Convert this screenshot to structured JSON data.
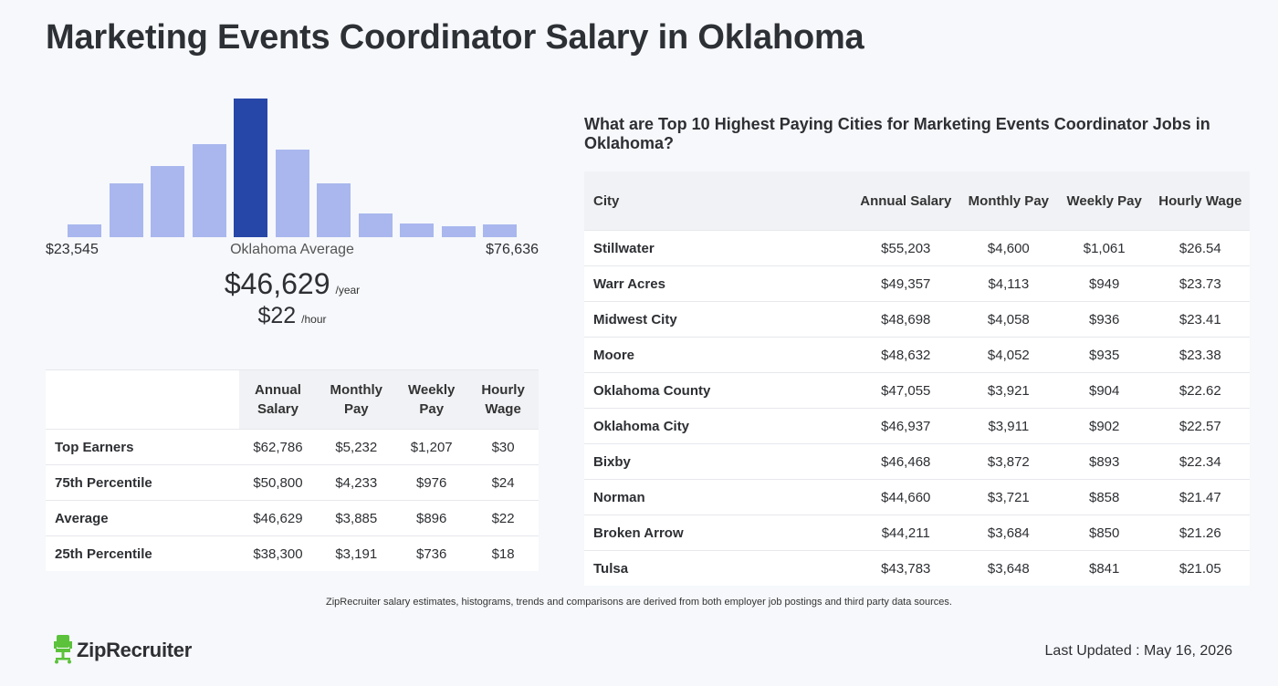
{
  "title": "Marketing Events Coordinator Salary in Oklahoma",
  "histogram": {
    "min_label": "$23,545",
    "max_label": "$76,636",
    "avg_label": "Oklahoma Average",
    "bars": [
      0.09,
      0.39,
      0.51,
      0.67,
      1.0,
      0.63,
      0.39,
      0.17,
      0.1,
      0.08,
      0.09
    ],
    "highlight_index": 4,
    "bar_color": "#a9b7ee",
    "highlight_color": "#2747a8"
  },
  "average": {
    "yearly": "$46,629",
    "yearly_unit": "/year",
    "hourly": "$22",
    "hourly_unit": "/hour"
  },
  "percentile_table": {
    "headers": [
      "Annual Salary",
      "Monthly Pay",
      "Weekly Pay",
      "Hourly Wage"
    ],
    "rows": [
      {
        "label": "Top Earners",
        "values": [
          "$62,786",
          "$5,232",
          "$1,207",
          "$30"
        ]
      },
      {
        "label": "75th Percentile",
        "values": [
          "$50,800",
          "$4,233",
          "$976",
          "$24"
        ]
      },
      {
        "label": "Average",
        "values": [
          "$46,629",
          "$3,885",
          "$896",
          "$22"
        ]
      },
      {
        "label": "25th Percentile",
        "values": [
          "$38,300",
          "$3,191",
          "$736",
          "$18"
        ]
      }
    ]
  },
  "cities": {
    "heading": "What are Top 10 Highest Paying Cities for Marketing Events Coordinator Jobs in Oklahoma?",
    "headers": [
      "City",
      "Annual Salary",
      "Monthly Pay",
      "Weekly Pay",
      "Hourly Wage"
    ],
    "rows": [
      {
        "city": "Stillwater",
        "values": [
          "$55,203",
          "$4,600",
          "$1,061",
          "$26.54"
        ]
      },
      {
        "city": "Warr Acres",
        "values": [
          "$49,357",
          "$4,113",
          "$949",
          "$23.73"
        ]
      },
      {
        "city": "Midwest City",
        "values": [
          "$48,698",
          "$4,058",
          "$936",
          "$23.41"
        ]
      },
      {
        "city": "Moore",
        "values": [
          "$48,632",
          "$4,052",
          "$935",
          "$23.38"
        ]
      },
      {
        "city": "Oklahoma County",
        "values": [
          "$47,055",
          "$3,921",
          "$904",
          "$22.62"
        ]
      },
      {
        "city": "Oklahoma City",
        "values": [
          "$46,937",
          "$3,911",
          "$902",
          "$22.57"
        ]
      },
      {
        "city": "Bixby",
        "values": [
          "$46,468",
          "$3,872",
          "$893",
          "$22.34"
        ]
      },
      {
        "city": "Norman",
        "values": [
          "$44,660",
          "$3,721",
          "$858",
          "$21.47"
        ]
      },
      {
        "city": "Broken Arrow",
        "values": [
          "$44,211",
          "$3,684",
          "$850",
          "$21.26"
        ]
      },
      {
        "city": "Tulsa",
        "values": [
          "$43,783",
          "$3,648",
          "$841",
          "$21.05"
        ]
      }
    ]
  },
  "footer": {
    "disclaimer": "ZipRecruiter salary estimates, histograms, trends and comparisons are derived from both employer job postings and third party data sources.",
    "logo_text": "ZipRecruiter",
    "logo_icon": "chair-icon",
    "logo_color": "#5cc23b",
    "last_updated": "Last Updated : May 16, 2026"
  }
}
